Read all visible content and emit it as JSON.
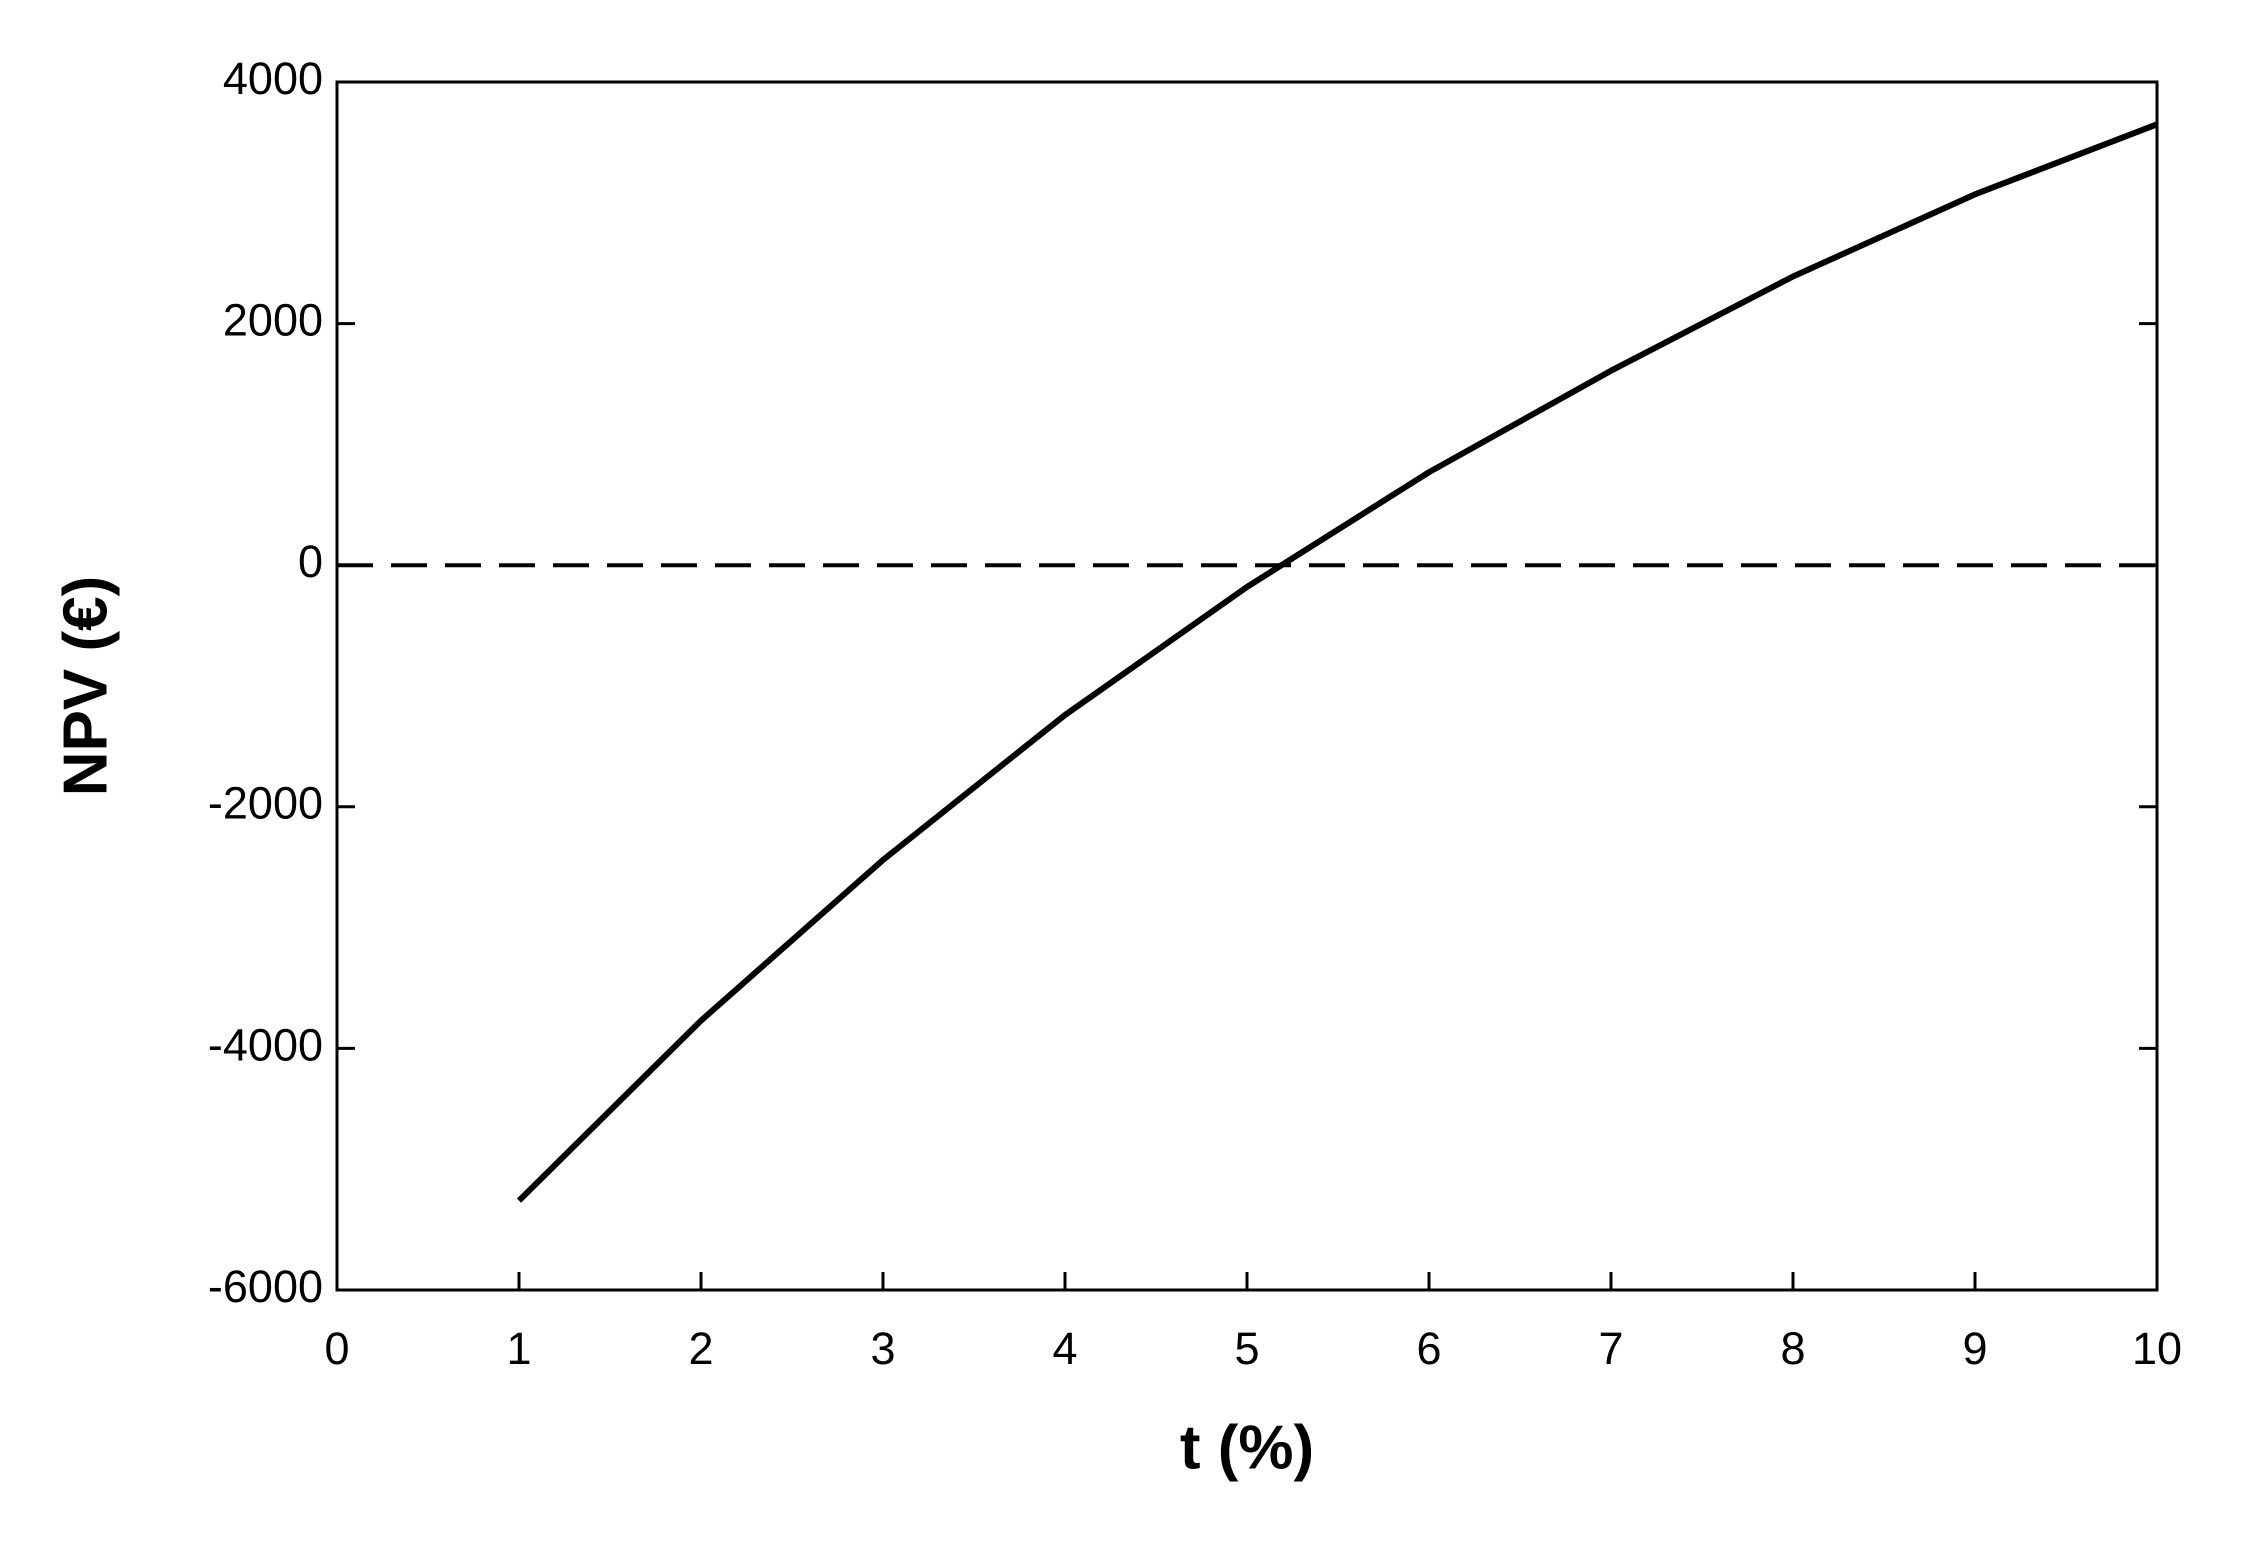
{
  "chart_data": {
    "type": "line",
    "x_label": "t (%)",
    "y_label": "NPV (€)",
    "x": [
      1,
      2,
      3,
      4,
      5,
      6,
      7,
      8,
      9,
      10
    ],
    "series": [
      {
        "name": "NPV",
        "color": "#000000",
        "values": [
          -5260,
          -3770,
          -2440,
          -1240,
          -180,
          770,
          1610,
          2390,
          3070,
          3650
        ]
      }
    ],
    "reference_line": {
      "y": 0,
      "style": "dashed",
      "color": "#000000"
    },
    "xlim": [
      0,
      10
    ],
    "xticks": [
      0,
      1,
      2,
      3,
      4,
      5,
      6,
      7,
      8,
      9,
      10
    ],
    "ylim": [
      -6000,
      4000
    ],
    "yticks": [
      -6000,
      -4000,
      -2000,
      0,
      2000,
      4000
    ],
    "grid": false
  }
}
